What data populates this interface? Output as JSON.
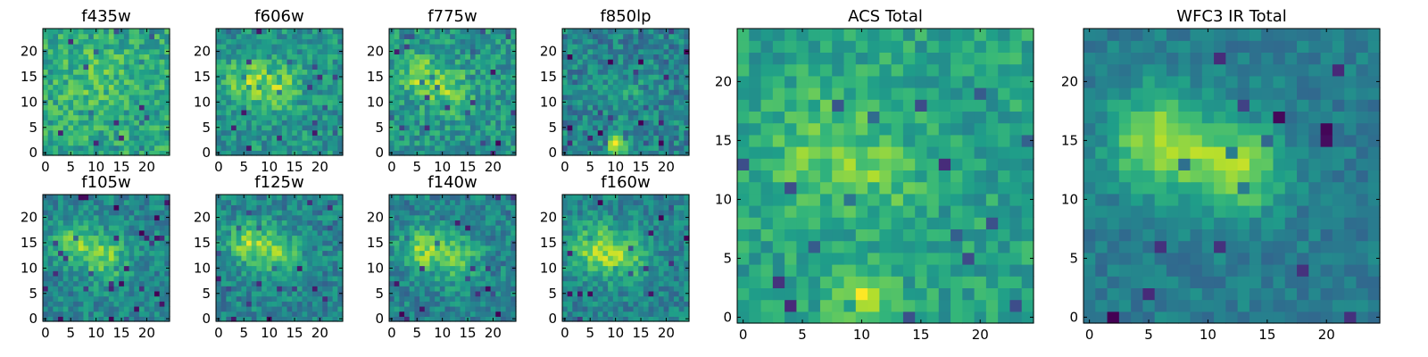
{
  "figure": {
    "background": "#ffffff"
  },
  "chart_data": [
    {
      "type": "heatmap",
      "title": "f435w",
      "colormap": "viridis",
      "grid_size": 25,
      "xticks": [
        "0",
        "5",
        "10",
        "15",
        "20"
      ],
      "yticks": [
        "0",
        "5",
        "10",
        "15",
        "20"
      ],
      "seed": 11,
      "mean": 0.6,
      "noise": 0.17,
      "blobs": [
        {
          "x": 10,
          "y": 15,
          "s": 5,
          "a": 0.1
        }
      ]
    },
    {
      "type": "heatmap",
      "title": "f606w",
      "colormap": "viridis",
      "grid_size": 25,
      "xticks": [
        "0",
        "5",
        "10",
        "15",
        "20"
      ],
      "yticks": [
        "0",
        "5",
        "10",
        "15",
        "20"
      ],
      "seed": 23,
      "mean": 0.52,
      "noise": 0.16,
      "blobs": [
        {
          "x": 6,
          "y": 14,
          "s": 3,
          "a": 0.3
        },
        {
          "x": 12,
          "y": 13,
          "s": 3,
          "a": 0.25
        }
      ]
    },
    {
      "type": "heatmap",
      "title": "f775w",
      "colormap": "viridis",
      "grid_size": 25,
      "xticks": [
        "0",
        "5",
        "10",
        "15",
        "20"
      ],
      "yticks": [
        "0",
        "5",
        "10",
        "15",
        "20"
      ],
      "seed": 37,
      "mean": 0.52,
      "noise": 0.17,
      "blobs": [
        {
          "x": 6,
          "y": 15,
          "s": 3,
          "a": 0.28
        },
        {
          "x": 12,
          "y": 12,
          "s": 3,
          "a": 0.22
        }
      ]
    },
    {
      "type": "heatmap",
      "title": "f850lp",
      "colormap": "viridis",
      "grid_size": 25,
      "xticks": [
        "0",
        "5",
        "10",
        "15",
        "20"
      ],
      "yticks": [
        "0",
        "5",
        "10",
        "15",
        "20"
      ],
      "seed": 51,
      "mean": 0.45,
      "noise": 0.17,
      "blobs": [
        {
          "x": 10,
          "y": 1.5,
          "s": 1.2,
          "a": 0.55
        },
        {
          "x": 12,
          "y": 12,
          "s": 3,
          "a": 0.1
        }
      ]
    },
    {
      "type": "heatmap",
      "title": "f105w",
      "colormap": "viridis",
      "grid_size": 25,
      "xticks": [
        "0",
        "5",
        "10",
        "15",
        "20"
      ],
      "yticks": [
        "0",
        "5",
        "10",
        "15",
        "20"
      ],
      "seed": 67,
      "mean": 0.46,
      "noise": 0.14,
      "blobs": [
        {
          "x": 6,
          "y": 15,
          "s": 3,
          "a": 0.3
        },
        {
          "x": 12,
          "y": 12,
          "s": 3,
          "a": 0.3
        }
      ]
    },
    {
      "type": "heatmap",
      "title": "f125w",
      "colormap": "viridis",
      "grid_size": 25,
      "xticks": [
        "0",
        "5",
        "10",
        "15",
        "20"
      ],
      "yticks": [
        "0",
        "5",
        "10",
        "15",
        "20"
      ],
      "seed": 79,
      "mean": 0.45,
      "noise": 0.15,
      "blobs": [
        {
          "x": 6,
          "y": 15,
          "s": 3,
          "a": 0.35
        },
        {
          "x": 12,
          "y": 13,
          "s": 3,
          "a": 0.3
        }
      ]
    },
    {
      "type": "heatmap",
      "title": "f140w",
      "colormap": "viridis",
      "grid_size": 25,
      "xticks": [
        "0",
        "5",
        "10",
        "15",
        "20"
      ],
      "yticks": [
        "0",
        "5",
        "10",
        "15",
        "20"
      ],
      "seed": 91,
      "mean": 0.45,
      "noise": 0.15,
      "blobs": [
        {
          "x": 6,
          "y": 14,
          "s": 3,
          "a": 0.35
        },
        {
          "x": 13,
          "y": 12,
          "s": 3,
          "a": 0.3
        }
      ]
    },
    {
      "type": "heatmap",
      "title": "f160w",
      "colormap": "viridis",
      "grid_size": 25,
      "xticks": [
        "0",
        "5",
        "10",
        "15",
        "20"
      ],
      "yticks": [
        "0",
        "5",
        "10",
        "15",
        "20"
      ],
      "seed": 103,
      "mean": 0.45,
      "noise": 0.14,
      "blobs": [
        {
          "x": 6,
          "y": 14,
          "s": 3.5,
          "a": 0.35
        },
        {
          "x": 12,
          "y": 12,
          "s": 3,
          "a": 0.3
        }
      ]
    },
    {
      "type": "heatmap",
      "title": "ACS Total",
      "colormap": "viridis",
      "grid_size": 25,
      "xticks": [
        "0",
        "5",
        "10",
        "15",
        "20"
      ],
      "yticks": [
        "0",
        "5",
        "10",
        "15",
        "20"
      ],
      "seed": 131,
      "mean": 0.58,
      "noise": 0.13,
      "blobs": [
        {
          "x": 7,
          "y": 14,
          "s": 3.5,
          "a": 0.18
        },
        {
          "x": 10,
          "y": 1.5,
          "s": 1.5,
          "a": 0.4
        },
        {
          "x": 12,
          "y": 12,
          "s": 2,
          "a": 0.12
        }
      ]
    },
    {
      "type": "heatmap",
      "title": "WFC3 IR Total",
      "colormap": "viridis",
      "grid_size": 25,
      "xticks": [
        "0",
        "5",
        "10",
        "15",
        "20"
      ],
      "yticks": [
        "0",
        "5",
        "10",
        "15",
        "20"
      ],
      "seed": 157,
      "mean": 0.42,
      "noise": 0.09,
      "blobs": [
        {
          "x": 6,
          "y": 15,
          "s": 3,
          "a": 0.45
        },
        {
          "x": 12.5,
          "y": 12.5,
          "s": 2.5,
          "a": 0.45
        }
      ]
    }
  ]
}
